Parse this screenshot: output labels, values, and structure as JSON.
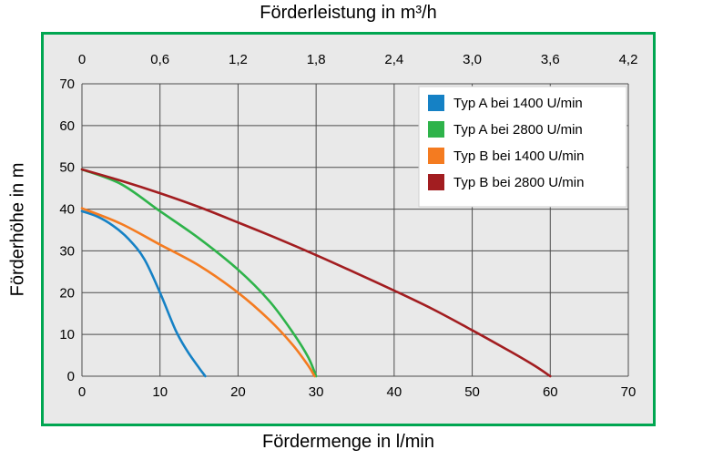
{
  "titles": {
    "top": "Förderleistung in m³/h",
    "bottom": "Fördermenge in l/min",
    "left": "Förderhöhe in m"
  },
  "frame": {
    "border_color": "#00a651",
    "background": "#e9e9e9",
    "grid_color": "#4d4d4d"
  },
  "chart_data": {
    "type": "line",
    "title": "Förderleistung in m³/h",
    "xlabel_bottom": "Fördermenge in l/min",
    "xlabel_top": "Förderleistung in m³/h",
    "ylabel": "Förderhöhe in m",
    "x_range": [
      0,
      70
    ],
    "y_range": [
      0,
      70
    ],
    "grid": true,
    "legend_position": "top-right",
    "x_ticks_bottom": [
      "0",
      "10",
      "20",
      "30",
      "40",
      "50",
      "60",
      "70"
    ],
    "x_ticks_bottom_values": [
      0,
      10,
      20,
      30,
      40,
      50,
      60,
      70
    ],
    "x_ticks_top": [
      "0",
      "0,6",
      "1,2",
      "1,8",
      "2,4",
      "3,0",
      "3,6",
      "4,2"
    ],
    "y_ticks": [
      "0",
      "10",
      "20",
      "30",
      "40",
      "50",
      "60",
      "70"
    ],
    "y_ticks_values": [
      0,
      10,
      20,
      30,
      40,
      50,
      60,
      70
    ],
    "series": [
      {
        "name": "Typ A bei 1400 U/min",
        "color": "#1581c5",
        "points": [
          [
            0,
            39.5
          ],
          [
            2,
            38.2
          ],
          [
            4,
            36.0
          ],
          [
            6,
            32.8
          ],
          [
            8,
            28.0
          ],
          [
            10,
            20.0
          ],
          [
            12,
            11.0
          ],
          [
            13.5,
            6.0
          ],
          [
            15,
            2.0
          ],
          [
            15.8,
            0
          ]
        ]
      },
      {
        "name": "Typ A bei 2800 U/min",
        "color": "#2eb34a",
        "points": [
          [
            0,
            49.5
          ],
          [
            5,
            46.0
          ],
          [
            10,
            39.5
          ],
          [
            15,
            33.0
          ],
          [
            20,
            25.5
          ],
          [
            24,
            18.0
          ],
          [
            27,
            10.5
          ],
          [
            29,
            4.5
          ],
          [
            30,
            0
          ]
        ]
      },
      {
        "name": "Typ B bei 1400 U/min",
        "color": "#f47b20",
        "points": [
          [
            0,
            40.2
          ],
          [
            5,
            36.5
          ],
          [
            10,
            31.5
          ],
          [
            15,
            26.5
          ],
          [
            20,
            20.0
          ],
          [
            24,
            13.5
          ],
          [
            27,
            7.5
          ],
          [
            29,
            2.5
          ],
          [
            29.8,
            0
          ]
        ]
      },
      {
        "name": "Typ B bei 2800 U/min",
        "color": "#a21d20",
        "points": [
          [
            0,
            49.5
          ],
          [
            5,
            46.8
          ],
          [
            10,
            43.8
          ],
          [
            15,
            40.5
          ],
          [
            20,
            36.8
          ],
          [
            25,
            33.0
          ],
          [
            30,
            29.0
          ],
          [
            35,
            24.8
          ],
          [
            40,
            20.5
          ],
          [
            45,
            16.0
          ],
          [
            50,
            11.0
          ],
          [
            55,
            5.8
          ],
          [
            58,
            2.5
          ],
          [
            60,
            0
          ]
        ]
      }
    ]
  }
}
